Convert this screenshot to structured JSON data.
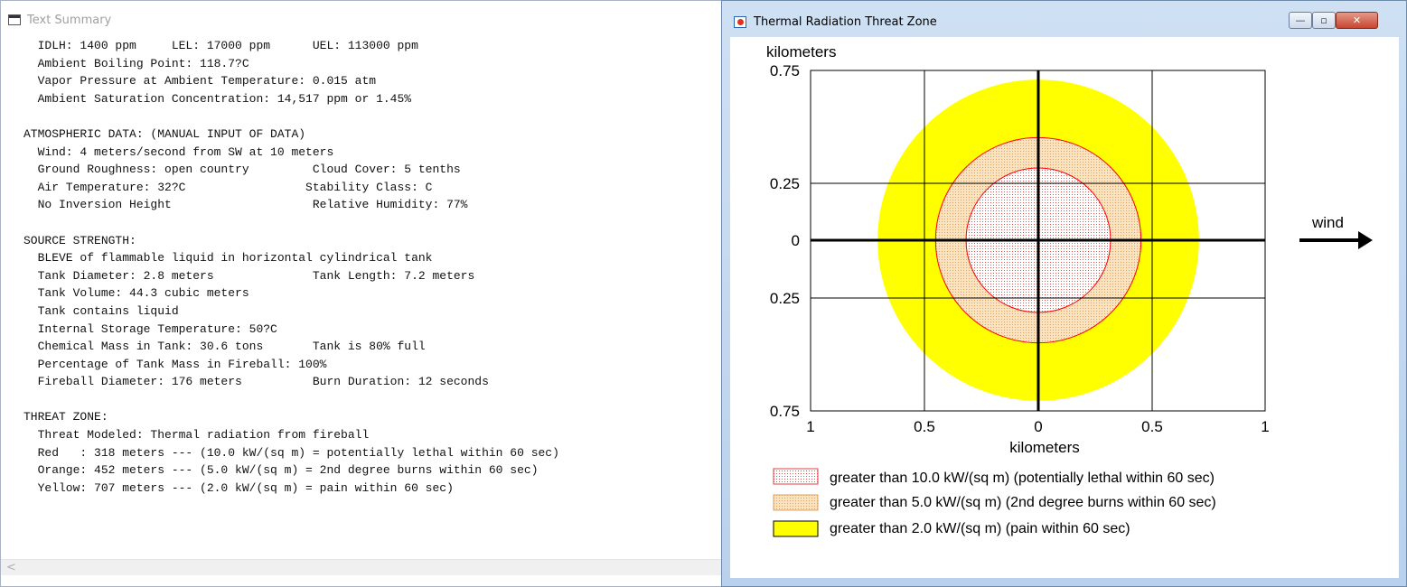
{
  "text_summary": {
    "title": "Text Summary",
    "lines": [
      "  IDLH: 1400 ppm     LEL: 17000 ppm      UEL: 113000 ppm",
      "  Ambient Boiling Point: 118.7?C",
      "  Vapor Pressure at Ambient Temperature: 0.015 atm",
      "  Ambient Saturation Concentration: 14,517 ppm or 1.45%",
      "",
      "ATMOSPHERIC DATA: (MANUAL INPUT OF DATA)",
      "  Wind: 4 meters/second from SW at 10 meters",
      "  Ground Roughness: open country         Cloud Cover: 5 tenths",
      "  Air Temperature: 32?C                 Stability Class: C",
      "  No Inversion Height                    Relative Humidity: 77%",
      "",
      "SOURCE STRENGTH:",
      "  BLEVE of flammable liquid in horizontal cylindrical tank",
      "  Tank Diameter: 2.8 meters              Tank Length: 7.2 meters",
      "  Tank Volume: 44.3 cubic meters",
      "  Tank contains liquid",
      "  Internal Storage Temperature: 50?C",
      "  Chemical Mass in Tank: 30.6 tons       Tank is 80% full",
      "  Percentage of Tank Mass in Fireball: 100%",
      "  Fireball Diameter: 176 meters          Burn Duration: 12 seconds",
      "",
      "THREAT ZONE:",
      "  Threat Modeled: Thermal radiation from fireball",
      "  Red   : 318 meters --- (10.0 kW/(sq m) = potentially lethal within 60 sec)",
      "  Orange: 452 meters --- (5.0 kW/(sq m) = 2nd degree burns within 60 sec)",
      "  Yellow: 707 meters --- (2.0 kW/(sq m) = pain within 60 sec)"
    ],
    "scroll_arrow": "<"
  },
  "threat_window": {
    "title": "Thermal Radiation Threat Zone",
    "buttons": {
      "minimize": "—",
      "maximize": "▫",
      "close": "✕"
    },
    "y_axis_title": "kilometers",
    "x_axis_title": "kilometers",
    "y_ticks": [
      "0.75",
      "0.25",
      "0",
      "0.25",
      "0.75"
    ],
    "x_ticks": [
      "1",
      "0.5",
      "0",
      "0.5",
      "1"
    ],
    "wind_label": "wind",
    "legend": [
      "greater than 10.0 kW/(sq m) (potentially lethal within 60 sec)",
      "greater than 5.0 kW/(sq m) (2nd degree burns within 60 sec)",
      "greater than 2.0 kW/(sq m) (pain within 60 sec)"
    ],
    "colors": {
      "yellow_zone": "#ffff00",
      "orange_zone": "#fbe3c0",
      "red_zone": "#ffffff",
      "zone_outline": "#ff0000",
      "dot": "#e05050"
    },
    "zones": [
      {
        "name": "Red",
        "radius_km": 0.318
      },
      {
        "name": "Orange",
        "radius_km": 0.452
      },
      {
        "name": "Yellow",
        "radius_km": 0.707
      }
    ]
  }
}
